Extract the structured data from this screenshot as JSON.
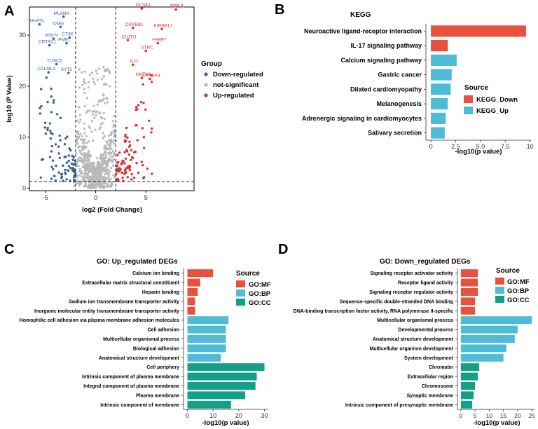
{
  "panels": {
    "a": "A",
    "b": "B",
    "c": "C",
    "d": "D"
  },
  "colors": {
    "down": "#3b5f99",
    "ns": "#b8b8b8",
    "up": "#d63232",
    "kegg_down": "#e8513d",
    "kegg_up": "#4fbcd6",
    "go_mf": "#e8513d",
    "go_bp": "#4fbcd6",
    "go_cc": "#14a086"
  },
  "chart_data": [
    {
      "type": "scatter",
      "name": "volcano",
      "xlabel": "log2 (Fold Change)",
      "ylabel": "log10 (P Value)",
      "xlim": [
        -6.6,
        9.8
      ],
      "ylim": [
        -0.5,
        35.5
      ],
      "xticks": [
        -5,
        0,
        5
      ],
      "yticks": [
        0,
        10,
        20,
        30
      ],
      "thresholds": {
        "fc": [
          -2,
          2
        ],
        "p": 1.3
      },
      "legend_title": "Group",
      "legend": [
        "Down-regulated",
        "not-significant",
        "Up-regulated"
      ],
      "labeled_down": [
        {
          "gene": "MLANA",
          "x": -3.2,
          "y": 33.6
        },
        {
          "gene": "HHATL",
          "x": -5.6,
          "y": 32.1
        },
        {
          "gene": "OMG",
          "x": -3.5,
          "y": 31.6
        },
        {
          "gene": "CT3K",
          "x": -2.6,
          "y": 29.5
        },
        {
          "gene": "MSLN",
          "x": -4.2,
          "y": 29.3
        },
        {
          "gene": "CRTAC1",
          "x": -4.6,
          "y": 28.0
        },
        {
          "gene": "PMEL",
          "x": -2.9,
          "y": 28.4
        },
        {
          "gene": "TUSC5",
          "x": -3.9,
          "y": 24.3
        },
        {
          "gene": "CALML3",
          "x": -4.7,
          "y": 22.7
        },
        {
          "gene": "SYT2",
          "x": -2.7,
          "y": 22.6
        }
      ],
      "labeled_up": [
        {
          "gene": "PCSK1",
          "x": 4.6,
          "y": 35.2
        },
        {
          "gene": "RBPJL",
          "x": 8.0,
          "y": 35.0
        },
        {
          "gene": "CRYBB1",
          "x": 3.7,
          "y": 31.4
        },
        {
          "gene": "KIRREL2",
          "x": 6.6,
          "y": 31.2
        },
        {
          "gene": "CUZD1",
          "x": 3.2,
          "y": 29.0
        },
        {
          "gene": "FABP7",
          "x": 6.2,
          "y": 28.4
        },
        {
          "gene": "STRC",
          "x": 5.0,
          "y": 26.9
        },
        {
          "gene": "IL11",
          "x": 3.7,
          "y": 24.2
        },
        {
          "gene": "MATN4",
          "x": 4.6,
          "y": 21.6
        },
        {
          "gene": "CRYBA4",
          "x": 5.4,
          "y": 21.4
        }
      ]
    },
    {
      "type": "bar",
      "name": "kegg",
      "title": "KEGG",
      "orientation": "horizontal",
      "categories": [
        "Neuroactive ligand-receptor interaction",
        "IL-17 signaling pathway",
        "Calcium signaling pathway",
        "Gastric cancer",
        "Dilated cardiomyopathy",
        "Melanogenesis",
        "Adrenergic signaling in cardiomyocytes",
        "Salivary secretion"
      ],
      "values": [
        9.6,
        1.7,
        2.6,
        2.1,
        2.0,
        1.7,
        1.5,
        1.4
      ],
      "sources": [
        "KEGG_Down",
        "KEGG_Down",
        "KEGG_Up",
        "KEGG_Up",
        "KEGG_Up",
        "KEGG_Up",
        "KEGG_Up",
        "KEGG_Up"
      ],
      "xlabel": "-log10(p value)",
      "xlim": [
        -0.5,
        10.1
      ],
      "xticks": [
        "0",
        "2.5",
        "5.0",
        "7.5",
        "10"
      ],
      "legend_title": "Source",
      "legend": [
        "KEGG_Down",
        "KEGG_Up"
      ]
    },
    {
      "type": "bar",
      "name": "go_up",
      "title": "GO: Up_regulated DEGs",
      "orientation": "horizontal",
      "categories": [
        "Calcium ion binding",
        "Extracellular matrix structural constituent",
        "Heparin binding",
        "Sodium ion transmembrane transporter activity",
        "Inorganic molecular entity transmembrane transporter activity",
        "Homophilic cell adhesion via plasma membrane adhesion molecules",
        "Cell adhesion",
        "Multicellular organismal process",
        "Biological adhesion",
        "Anatomical structure development",
        "Cell periphery",
        "Intrinsic component of plasma membrane",
        "Integral component of plasma membrane",
        "Plasma membrane",
        "Intrinsic component of membrane"
      ],
      "values": [
        10,
        5,
        4,
        3,
        3,
        16,
        15,
        15,
        15,
        13,
        30,
        27,
        26.5,
        22.5,
        17
      ],
      "sources": [
        "GO:MF",
        "GO:MF",
        "GO:MF",
        "GO:MF",
        "GO:MF",
        "GO:BP",
        "GO:BP",
        "GO:BP",
        "GO:BP",
        "GO:BP",
        "GO:CC",
        "GO:CC",
        "GO:CC",
        "GO:CC",
        "GO:CC"
      ],
      "xlabel": "-log10(p value)",
      "xlim": [
        -1.5,
        31.5
      ],
      "xticks": [
        "0",
        "10",
        "20",
        "30"
      ],
      "legend_title": "Source",
      "legend": [
        "GO:MF",
        "GO:BP",
        "GO:CC"
      ]
    },
    {
      "type": "bar",
      "name": "go_down",
      "title": "GO: Down_regulated DEGs",
      "orientation": "horizontal",
      "categories": [
        "Signaling receptor activator activity",
        "Receptor ligand activity",
        "Signaling receptor regulator activity",
        "Sequence-specific double-stranded DNA binding",
        "DNA-binding transcription factor activity, RNA polymerase II-specific",
        "Multicellular organismal process",
        "Developmental process",
        "Anatomical structure development",
        "Multicellular organism development",
        "System development",
        "Chromatin",
        "Extracellular region",
        "Chromosome",
        "Synaptic membrane",
        "Intrinsic component of presynaptic membrane"
      ],
      "values": [
        6,
        6,
        6,
        5,
        5,
        25,
        20,
        19,
        16,
        15,
        6.5,
        6,
        5,
        4.5,
        4
      ],
      "sources": [
        "GO:MF",
        "GO:MF",
        "GO:MF",
        "GO:MF",
        "GO:MF",
        "GO:BP",
        "GO:BP",
        "GO:BP",
        "GO:BP",
        "GO:BP",
        "GO:CC",
        "GO:CC",
        "GO:CC",
        "GO:CC",
        "GO:CC"
      ],
      "xlabel": "-log10(p value)",
      "xlim": [
        -1.2,
        26.2
      ],
      "xticks": [
        "0",
        "5",
        "10",
        "15",
        "20",
        "25"
      ],
      "legend_title": "Source",
      "legend": [
        "GO:MF",
        "GO:BP",
        "GO:CC"
      ]
    }
  ]
}
